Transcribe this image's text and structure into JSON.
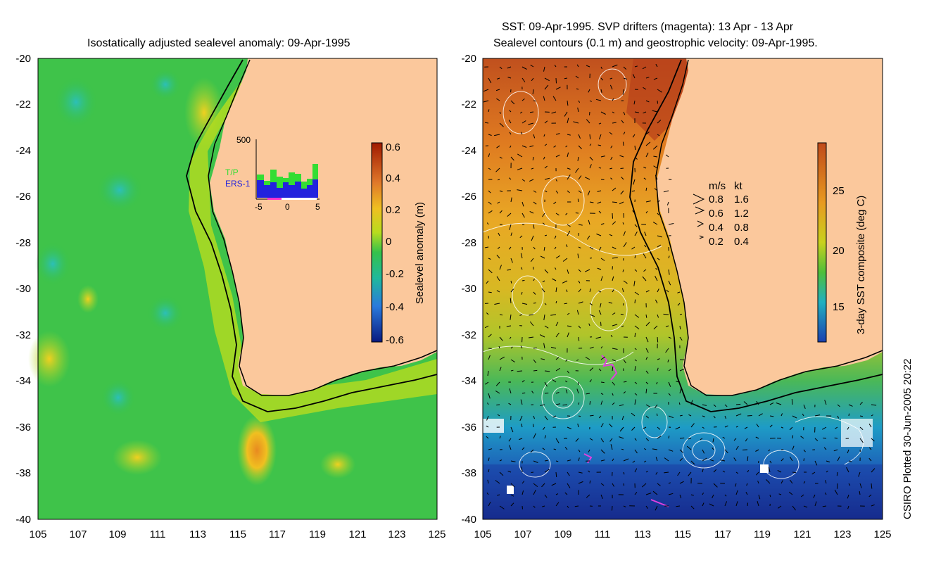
{
  "left_panel": {
    "title": "Isostatically adjusted sealevel anomaly: 09-Apr-1995",
    "colorbar_label": "Sealevel anomaly (m)",
    "colorbar_ticks": [
      "0.6",
      "0.4",
      "0.2",
      "0",
      "-0.2",
      "-0.4",
      "-0.6"
    ],
    "inset": {
      "ymax_label": "500",
      "legend_tp": "T/P",
      "legend_ers": "ERS-1",
      "x_ticks": [
        "-5",
        "0",
        "5"
      ],
      "colors": {
        "tp": "#33dd33",
        "ers": "#2222dd",
        "window": "#ff33cc"
      }
    }
  },
  "right_panel": {
    "title_line1": "SST: 09-Apr-1995. SVP drifters (magenta): 13 Apr - 13 Apr",
    "title_line2": "Sealevel contours (0.1 m) and geostrophic velocity: 09-Apr-1995.",
    "colorbar_label": "3-day SST composite (deg C)",
    "colorbar_ticks": [
      "25",
      "20",
      "15"
    ],
    "velocity_key": {
      "header_ms": "m/s",
      "header_kt": "kt",
      "rows": [
        {
          "ms": "0.8",
          "kt": "1.6"
        },
        {
          "ms": "0.6",
          "kt": "1.2"
        },
        {
          "ms": "0.4",
          "kt": "0.8"
        },
        {
          "ms": "0.2",
          "kt": "0.4"
        }
      ]
    }
  },
  "axes": {
    "lat_labels": [
      "-20",
      "-22",
      "-24",
      "-26",
      "-28",
      "-30",
      "-32",
      "-34",
      "-36",
      "-38",
      "-40"
    ],
    "lon_labels": [
      "105",
      "107",
      "109",
      "111",
      "113",
      "115",
      "117",
      "119",
      "121",
      "123",
      "125"
    ]
  },
  "footer": "CSIRO Plotted 30-Jun-2005 20:22",
  "colors": {
    "land": "#fbc89c",
    "ocean_left": "#33c24a",
    "sst_warm": "#c8501a",
    "sst_cold": "#1a3fa8"
  }
}
